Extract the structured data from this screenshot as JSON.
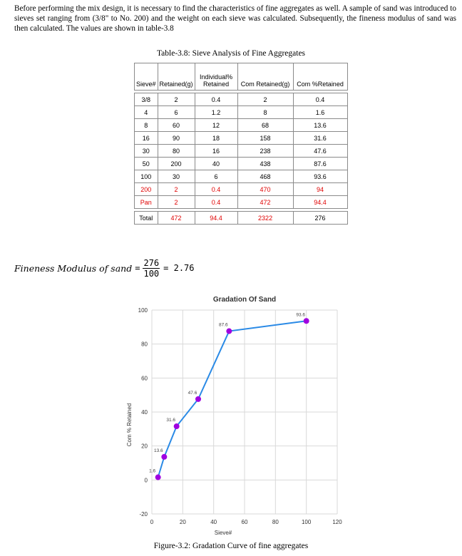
{
  "paragraph": "Before performing the mix design, it is necessary to find the characteristics of fine aggregates as well.  A sample of sand was introduced to sieves set ranging from (3/8\" to No. 200) and the weight on each sieve was calculated. Subsequently, the fineness modulus of sand was then calculated. The values are shown in table-3.8",
  "table": {
    "caption": "Table-3.8: Sieve Analysis of Fine Aggregates",
    "headers": {
      "sieve": "Sieve#",
      "retained": "Retained(g)",
      "individual_top": "Individual%",
      "individual_bottom": "Retained",
      "com_retained": "Com Retained(g)",
      "com_pct": "Com %Retained"
    },
    "rows": [
      {
        "sieve": "3/8",
        "retained": "2",
        "ind": "0.4",
        "com": "2",
        "pct": "0.4",
        "red": false
      },
      {
        "sieve": "4",
        "retained": "6",
        "ind": "1.2",
        "com": "8",
        "pct": "1.6",
        "red": false
      },
      {
        "sieve": "8",
        "retained": "60",
        "ind": "12",
        "com": "68",
        "pct": "13.6",
        "red": false
      },
      {
        "sieve": "16",
        "retained": "90",
        "ind": "18",
        "com": "158",
        "pct": "31.6",
        "red": false
      },
      {
        "sieve": "30",
        "retained": "80",
        "ind": "16",
        "com": "238",
        "pct": "47.6",
        "red": false
      },
      {
        "sieve": "50",
        "retained": "200",
        "ind": "40",
        "com": "438",
        "pct": "87.6",
        "red": false
      },
      {
        "sieve": "100",
        "retained": "30",
        "ind": "6",
        "com": "468",
        "pct": "93.6",
        "red": false
      },
      {
        "sieve": "200",
        "retained": "2",
        "ind": "0.4",
        "com": "470",
        "pct": "94",
        "red": true
      },
      {
        "sieve": "Pan",
        "retained": "2",
        "ind": "0.4",
        "com": "472",
        "pct": "94.4",
        "red": true
      }
    ],
    "total": {
      "label": "Total",
      "retained": "472",
      "ind": "94.4",
      "com": "2322",
      "pct": "276"
    }
  },
  "fineness": {
    "label": "Fineness Modulus of sand",
    "eq": "=",
    "numerator": "276",
    "denominator": "100",
    "result": "= 2.76"
  },
  "chart_data": {
    "type": "scatter",
    "title": "Gradation Of Sand",
    "xlabel": "Sieve#",
    "ylabel": "Com % Retained",
    "xlim": [
      0,
      120
    ],
    "ylim": [
      -20,
      100
    ],
    "xticks": [
      0,
      20,
      40,
      60,
      80,
      100,
      120
    ],
    "yticks": [
      -20,
      0,
      20,
      40,
      60,
      80,
      100
    ],
    "grid": true,
    "line_color": "#2a8ae6",
    "marker_color": "#a000e0",
    "points": [
      {
        "x": 4,
        "y": 1.6,
        "label": "1.6"
      },
      {
        "x": 8,
        "y": 13.6,
        "label": "13.6"
      },
      {
        "x": 16,
        "y": 31.6,
        "label": "31.6"
      },
      {
        "x": 30,
        "y": 47.6,
        "label": "47.6"
      },
      {
        "x": 50,
        "y": 87.6,
        "label": "87.6"
      },
      {
        "x": 100,
        "y": 93.6,
        "label": "93.6"
      }
    ]
  },
  "figure_caption": "Figure-3.2: Gradation Curve of fine aggregates"
}
